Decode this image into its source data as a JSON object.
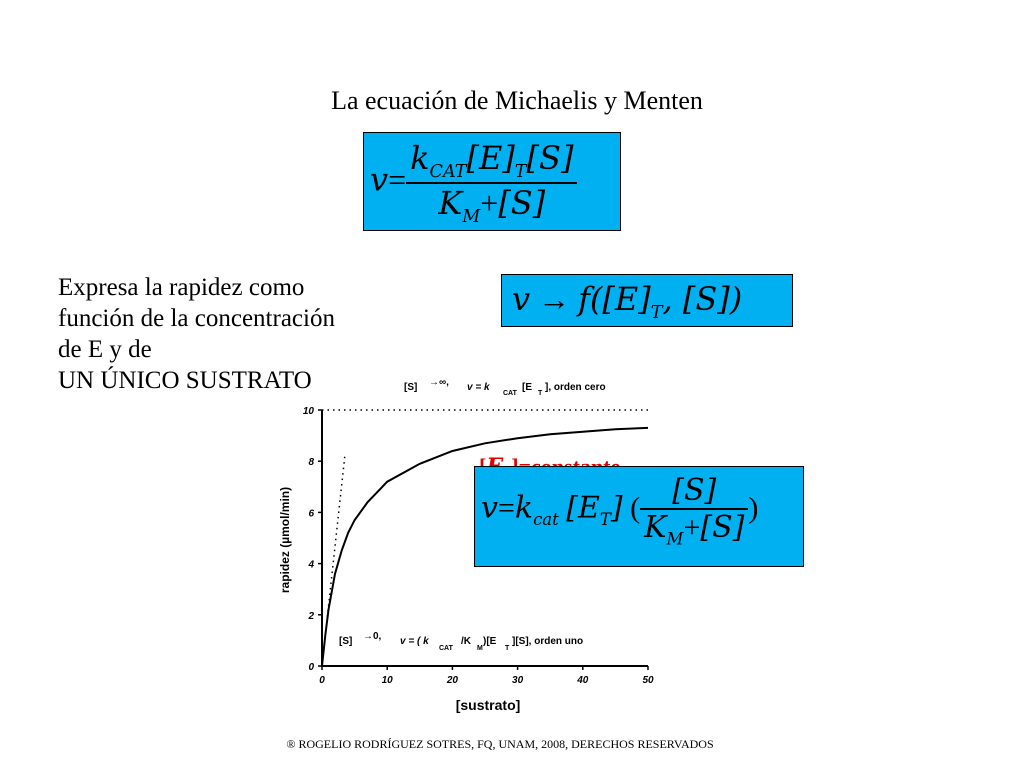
{
  "title": "La ecuación de Michaelis y Menten",
  "equation_main": {
    "v": "v",
    "eq": "=",
    "k": "k",
    "k_sub": "CAT",
    "e_bracket": "[E]",
    "t_sub": "T",
    "s_bracket": "[S]",
    "K": "K",
    "K_sub": "M",
    "plus": "+"
  },
  "equation_function": {
    "text_v": "v",
    "arrow": "→",
    "f": "f",
    "open": "([E]",
    "t_sub": "T",
    "close": ", [S])"
  },
  "description": {
    "line1": "Expresa la rapidez como",
    "line2": "función de la concentración",
    "line3": "de E y de",
    "line4": "UN ÚNICO SUSTRATO"
  },
  "annotation_top": {
    "s": "[S]",
    "limit": "→∞,",
    "v_part": "v = k",
    "cat": "CAT",
    "et": "[E",
    "t": "T",
    "rest": "], orden cero"
  },
  "annotation_bottom": {
    "s": "[S]",
    "limit": "→0,",
    "v_part": "v = ( k",
    "cat": "CAT",
    "km": "/K",
    "m": "M",
    "et": ")[E",
    "t": "T",
    "rest": "][S], orden uno"
  },
  "et_constant": {
    "open": "[",
    "E": "E",
    "T": "T",
    "close": "]=constante"
  },
  "equation_constant": {
    "v": "v",
    "eq": "=",
    "k": "k",
    "cat": "cat",
    "e": "[E",
    "t": "T",
    "e_close": "]",
    "open_paren": "(",
    "s": "[S]",
    "K": "K",
    "M": "M",
    "plus": "+",
    "close_paren": ")"
  },
  "chart_data": {
    "type": "line",
    "xlabel": "[sustrato]",
    "ylabel": "rapidez (µmol/min)",
    "xlim": [
      0,
      50
    ],
    "ylim": [
      0,
      10
    ],
    "xticks": [
      "0",
      "10",
      "20",
      "30",
      "40",
      "50"
    ],
    "yticks": [
      "0",
      "2",
      "4",
      "6",
      "8",
      "10"
    ],
    "series": [
      {
        "x": [
          0,
          0.5,
          1,
          2,
          3,
          4,
          5,
          7,
          10,
          15,
          20,
          25,
          30,
          35,
          40,
          45,
          50
        ],
        "y": [
          0,
          1.2,
          2.2,
          3.6,
          4.5,
          5.2,
          5.7,
          6.4,
          7.2,
          7.9,
          8.4,
          8.7,
          8.9,
          9.05,
          9.15,
          9.25,
          9.3
        ]
      }
    ],
    "asymptote_vmax": 10,
    "initial_slope_line": {
      "x": [
        0,
        3.5
      ],
      "y": [
        0,
        8.2
      ]
    }
  },
  "footer": "® ROGELIO RODRÍGUEZ SOTRES, FQ, UNAM, 2008, DERECHOS RESERVADOS"
}
